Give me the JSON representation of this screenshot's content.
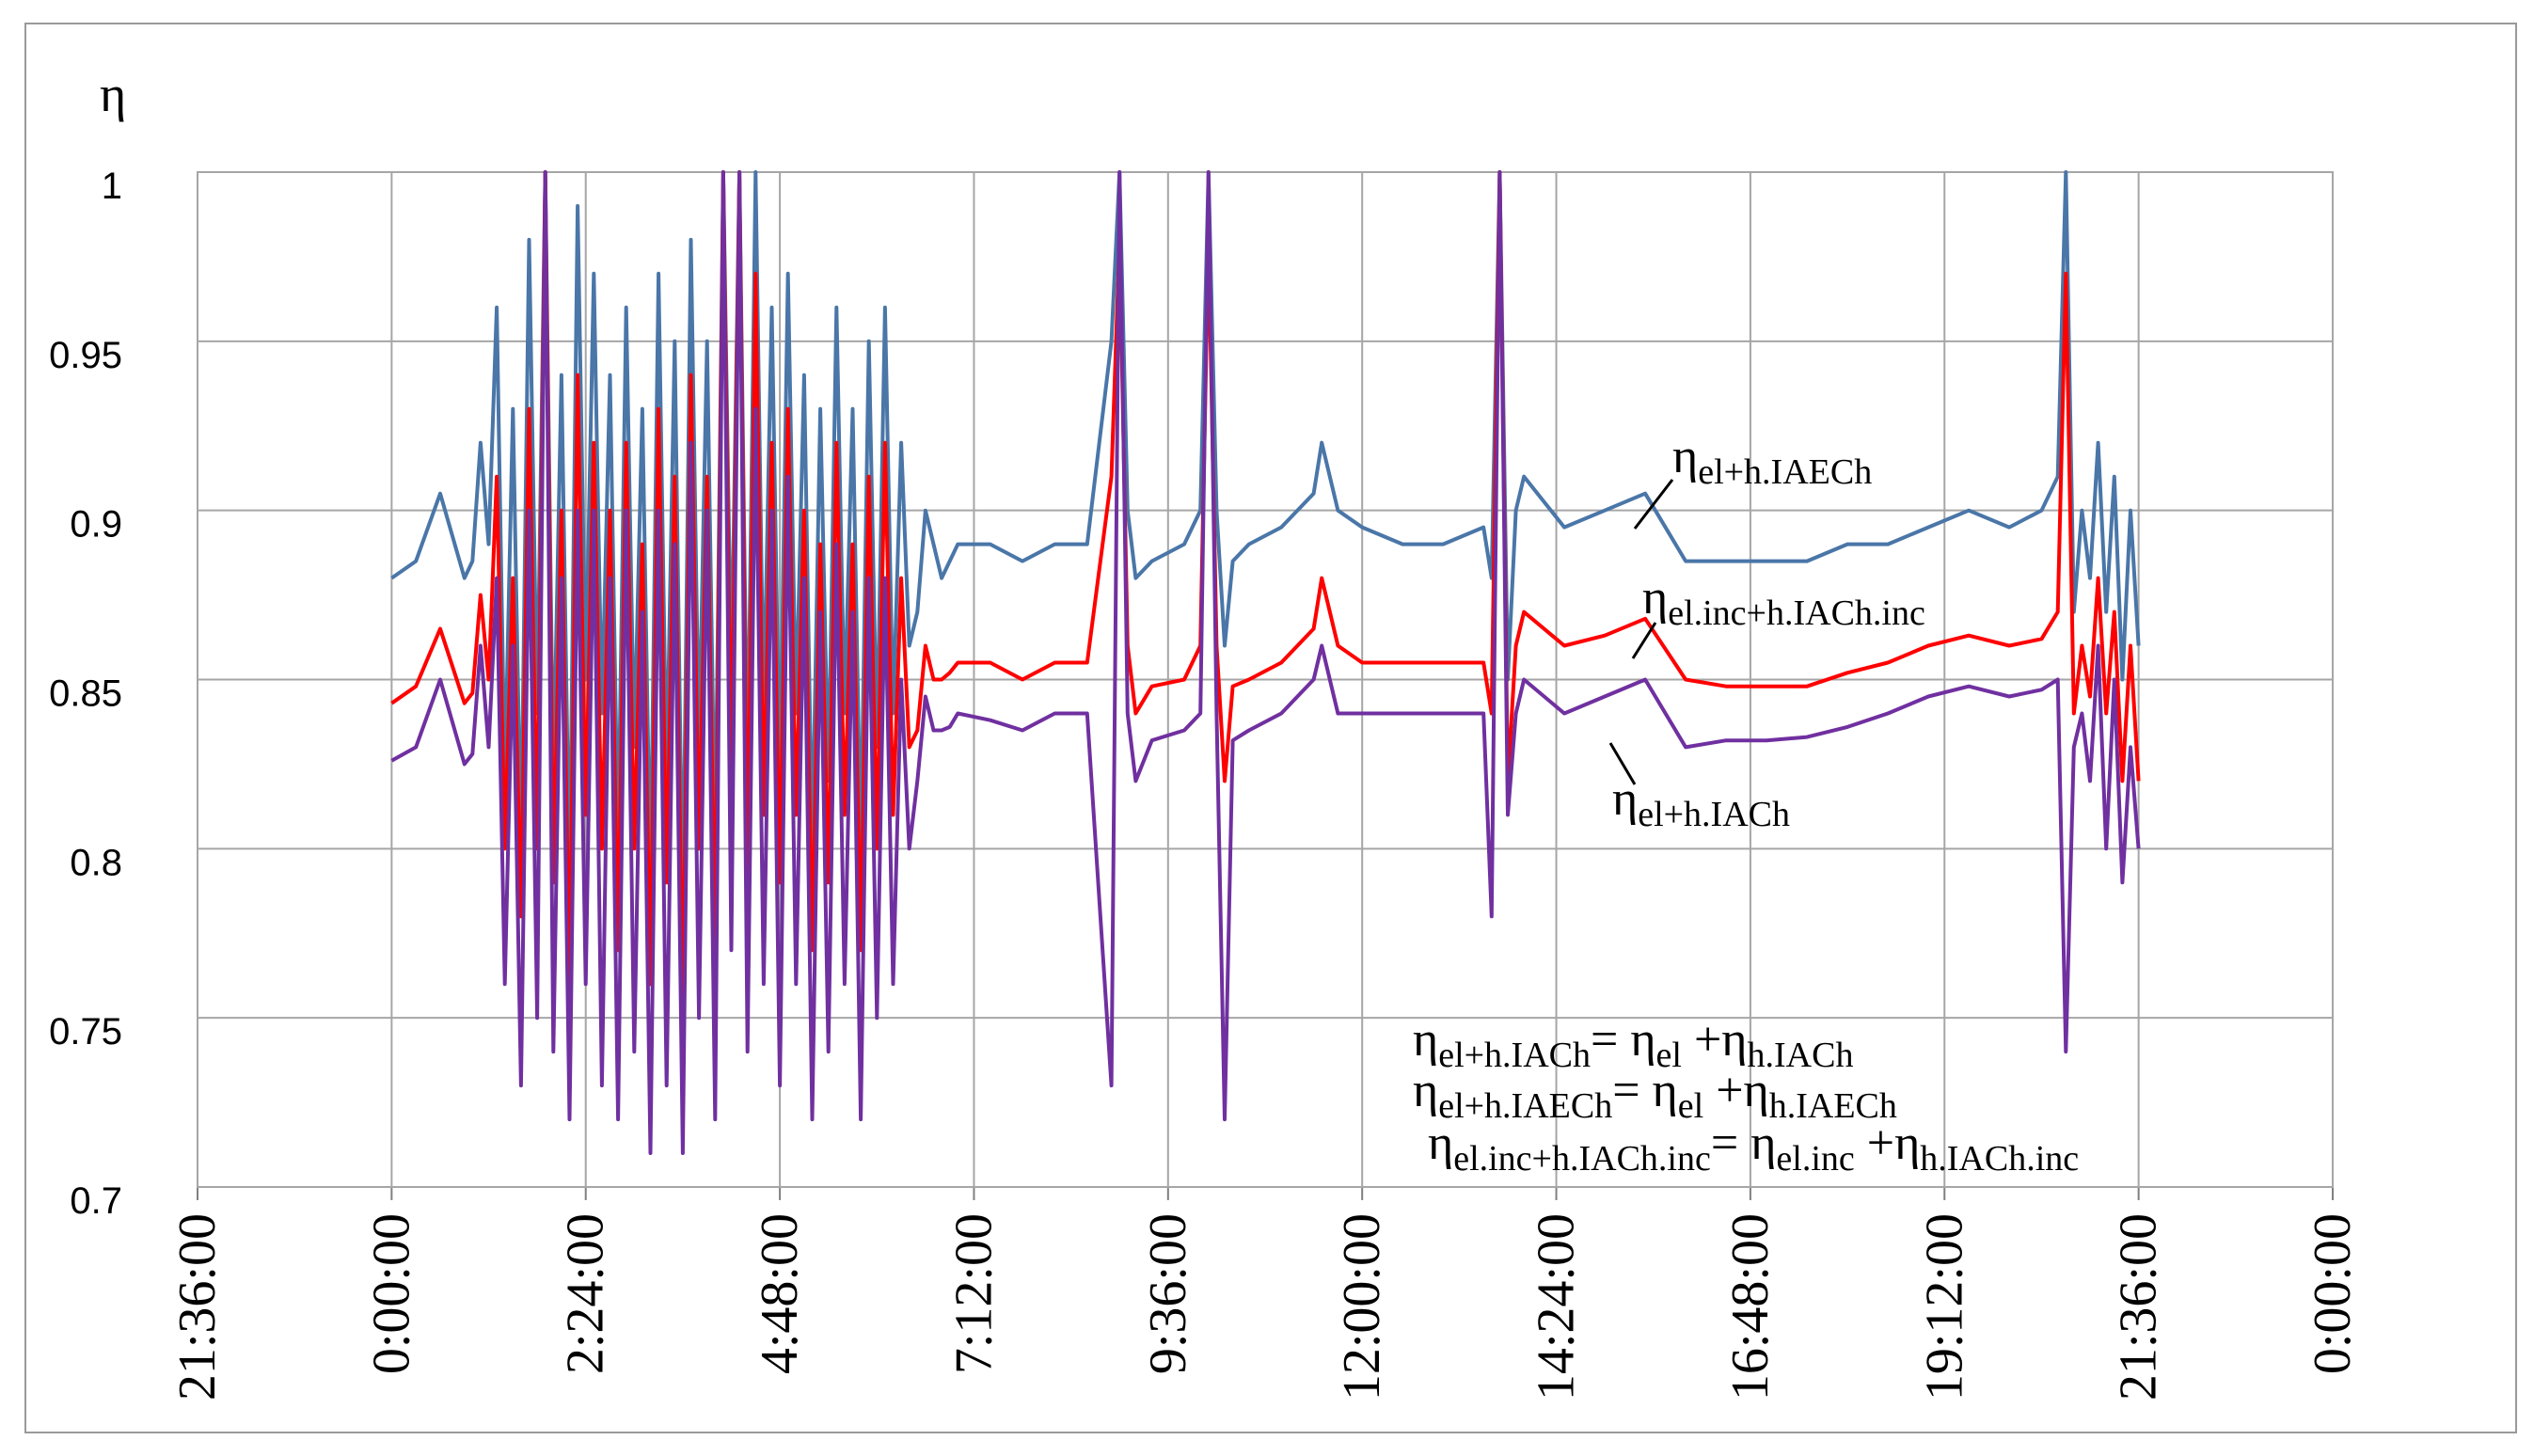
{
  "chart_data": {
    "type": "line",
    "title": "",
    "ylabel": "η",
    "xlabel": "",
    "ylim": [
      0.7,
      1.0
    ],
    "yticks": [
      "0.7",
      "0.75",
      "0.8",
      "0.85",
      "0.9",
      "0.95",
      "1"
    ],
    "xlim_hours": [
      -2.4,
      24.0
    ],
    "xticks": [
      "21:36:00",
      "0:00:00",
      "2:24:00",
      "4:48:00",
      "7:12:00",
      "9:36:00",
      "12:00:00",
      "14:24:00",
      "16:48:00",
      "19:12:00",
      "21:36:00",
      "0:00:00"
    ],
    "grid": true,
    "colors": {
      "blue": "#4a76a8",
      "red": "#ff0000",
      "purple": "#7030a0"
    },
    "series": [
      {
        "name": "ηel+h.IAECh",
        "color": "#4a76a8",
        "x": [
          0.0,
          0.3,
          0.6,
          0.9,
          1.0,
          1.1,
          1.2,
          1.3,
          1.4,
          1.5,
          1.6,
          1.7,
          1.8,
          1.9,
          2.0,
          2.1,
          2.2,
          2.3,
          2.4,
          2.5,
          2.6,
          2.7,
          2.8,
          2.9,
          3.0,
          3.1,
          3.2,
          3.3,
          3.4,
          3.5,
          3.6,
          3.7,
          3.8,
          3.9,
          4.0,
          4.1,
          4.2,
          4.3,
          4.4,
          4.5,
          4.6,
          4.7,
          4.8,
          4.9,
          5.0,
          5.1,
          5.2,
          5.3,
          5.4,
          5.5,
          5.6,
          5.7,
          5.8,
          5.9,
          6.0,
          6.1,
          6.2,
          6.3,
          6.4,
          6.5,
          6.6,
          6.7,
          6.8,
          6.9,
          7.0,
          7.4,
          7.8,
          8.2,
          8.6,
          8.9,
          9.0,
          9.1,
          9.2,
          9.4,
          9.8,
          10.0,
          10.1,
          10.2,
          10.3,
          10.4,
          10.6,
          11.0,
          11.4,
          11.5,
          11.7,
          12.0,
          12.5,
          13.0,
          13.5,
          13.6,
          13.7,
          13.8,
          13.9,
          14.0,
          14.5,
          15.0,
          15.5,
          16.0,
          16.5,
          17.0,
          17.5,
          18.0,
          18.5,
          19.0,
          19.5,
          20.0,
          20.4,
          20.6,
          20.7,
          20.8,
          20.9,
          21.0,
          21.1,
          21.2,
          21.3,
          21.4,
          21.5,
          21.6
        ],
        "y": [
          0.88,
          0.885,
          0.905,
          0.88,
          0.885,
          0.92,
          0.89,
          0.96,
          0.82,
          0.93,
          0.8,
          0.98,
          0.84,
          1.0,
          0.82,
          0.94,
          0.79,
          0.99,
          0.85,
          0.97,
          0.84,
          0.94,
          0.8,
          0.96,
          0.83,
          0.93,
          0.79,
          0.97,
          0.82,
          0.95,
          0.78,
          0.98,
          0.83,
          0.95,
          0.8,
          1.0,
          0.85,
          1.0,
          0.82,
          1.0,
          0.84,
          0.96,
          0.82,
          0.97,
          0.84,
          0.94,
          0.8,
          0.93,
          0.82,
          0.96,
          0.84,
          0.93,
          0.8,
          0.95,
          0.83,
          0.96,
          0.84,
          0.92,
          0.86,
          0.87,
          0.9,
          0.89,
          0.88,
          0.885,
          0.89,
          0.89,
          0.885,
          0.89,
          0.89,
          0.95,
          1.0,
          0.9,
          0.88,
          0.885,
          0.89,
          0.9,
          1.0,
          0.9,
          0.86,
          0.885,
          0.89,
          0.895,
          0.905,
          0.92,
          0.9,
          0.895,
          0.89,
          0.89,
          0.895,
          0.88,
          1.0,
          0.85,
          0.9,
          0.91,
          0.895,
          0.9,
          0.905,
          0.885,
          0.885,
          0.885,
          0.885,
          0.89,
          0.89,
          0.895,
          0.9,
          0.895,
          0.9,
          0.91,
          1.0,
          0.87,
          0.9,
          0.88,
          0.92,
          0.87,
          0.91,
          0.85,
          0.9,
          0.86
        ]
      },
      {
        "name": "ηel.inc+h.IACh.inc",
        "color": "#ff0000",
        "x": [
          0.0,
          0.3,
          0.6,
          0.9,
          1.0,
          1.1,
          1.2,
          1.3,
          1.4,
          1.5,
          1.6,
          1.7,
          1.8,
          1.9,
          2.0,
          2.1,
          2.2,
          2.3,
          2.4,
          2.5,
          2.6,
          2.7,
          2.8,
          2.9,
          3.0,
          3.1,
          3.2,
          3.3,
          3.4,
          3.5,
          3.6,
          3.7,
          3.8,
          3.9,
          4.0,
          4.1,
          4.2,
          4.3,
          4.4,
          4.5,
          4.6,
          4.7,
          4.8,
          4.9,
          5.0,
          5.1,
          5.2,
          5.3,
          5.4,
          5.5,
          5.6,
          5.7,
          5.8,
          5.9,
          6.0,
          6.1,
          6.2,
          6.3,
          6.4,
          6.5,
          6.6,
          6.7,
          6.8,
          6.9,
          7.0,
          7.4,
          7.8,
          8.2,
          8.6,
          8.9,
          9.0,
          9.1,
          9.2,
          9.4,
          9.8,
          10.0,
          10.1,
          10.2,
          10.3,
          10.4,
          10.6,
          11.0,
          11.4,
          11.5,
          11.7,
          12.0,
          12.5,
          13.0,
          13.5,
          13.6,
          13.7,
          13.8,
          13.9,
          14.0,
          14.5,
          15.0,
          15.5,
          16.0,
          16.5,
          17.0,
          17.5,
          18.0,
          18.5,
          19.0,
          19.5,
          20.0,
          20.4,
          20.6,
          20.7,
          20.8,
          20.9,
          21.0,
          21.1,
          21.2,
          21.3,
          21.4,
          21.5,
          21.6
        ],
        "y": [
          0.843,
          0.848,
          0.865,
          0.843,
          0.846,
          0.875,
          0.85,
          0.91,
          0.8,
          0.88,
          0.78,
          0.93,
          0.8,
          1.0,
          0.79,
          0.9,
          0.76,
          0.94,
          0.81,
          0.92,
          0.8,
          0.9,
          0.77,
          0.92,
          0.8,
          0.89,
          0.76,
          0.93,
          0.79,
          0.91,
          0.75,
          0.94,
          0.8,
          0.91,
          0.77,
          1.0,
          0.82,
          1.0,
          0.79,
          0.97,
          0.81,
          0.92,
          0.79,
          0.93,
          0.81,
          0.9,
          0.77,
          0.89,
          0.79,
          0.92,
          0.81,
          0.89,
          0.77,
          0.91,
          0.8,
          0.92,
          0.81,
          0.88,
          0.83,
          0.835,
          0.86,
          0.85,
          0.85,
          0.852,
          0.855,
          0.855,
          0.85,
          0.855,
          0.855,
          0.91,
          0.98,
          0.86,
          0.84,
          0.848,
          0.85,
          0.86,
          0.98,
          0.86,
          0.82,
          0.848,
          0.85,
          0.855,
          0.865,
          0.88,
          0.86,
          0.855,
          0.855,
          0.855,
          0.855,
          0.84,
          1.0,
          0.82,
          0.86,
          0.87,
          0.86,
          0.863,
          0.868,
          0.85,
          0.848,
          0.848,
          0.848,
          0.852,
          0.855,
          0.86,
          0.863,
          0.86,
          0.862,
          0.87,
          0.97,
          0.84,
          0.86,
          0.845,
          0.88,
          0.84,
          0.87,
          0.82,
          0.86,
          0.82
        ]
      },
      {
        "name": "ηel+h.IACh",
        "color": "#7030a0",
        "x": [
          0.0,
          0.3,
          0.6,
          0.9,
          1.0,
          1.1,
          1.2,
          1.3,
          1.4,
          1.5,
          1.6,
          1.7,
          1.8,
          1.9,
          2.0,
          2.1,
          2.2,
          2.3,
          2.4,
          2.5,
          2.6,
          2.7,
          2.8,
          2.9,
          3.0,
          3.1,
          3.2,
          3.3,
          3.4,
          3.5,
          3.6,
          3.7,
          3.8,
          3.9,
          4.0,
          4.1,
          4.2,
          4.3,
          4.4,
          4.5,
          4.6,
          4.7,
          4.8,
          4.9,
          5.0,
          5.1,
          5.2,
          5.3,
          5.4,
          5.5,
          5.6,
          5.7,
          5.8,
          5.9,
          6.0,
          6.1,
          6.2,
          6.3,
          6.4,
          6.5,
          6.6,
          6.7,
          6.8,
          6.9,
          7.0,
          7.4,
          7.8,
          8.2,
          8.6,
          8.9,
          9.0,
          9.1,
          9.2,
          9.4,
          9.8,
          10.0,
          10.1,
          10.2,
          10.3,
          10.4,
          10.6,
          11.0,
          11.4,
          11.5,
          11.7,
          12.0,
          12.5,
          13.0,
          13.5,
          13.6,
          13.7,
          13.8,
          13.9,
          14.0,
          14.5,
          15.0,
          15.5,
          16.0,
          16.5,
          17.0,
          17.5,
          18.0,
          18.5,
          19.0,
          19.5,
          20.0,
          20.4,
          20.6,
          20.7,
          20.8,
          20.9,
          21.0,
          21.1,
          21.2,
          21.3,
          21.4,
          21.5,
          21.6
        ],
        "y": [
          0.826,
          0.83,
          0.85,
          0.825,
          0.828,
          0.86,
          0.83,
          0.88,
          0.76,
          0.86,
          0.73,
          0.9,
          0.75,
          1.0,
          0.74,
          0.88,
          0.72,
          0.9,
          0.76,
          0.9,
          0.73,
          0.88,
          0.72,
          0.9,
          0.74,
          0.87,
          0.71,
          0.9,
          0.73,
          0.89,
          0.71,
          0.92,
          0.75,
          0.9,
          0.72,
          1.0,
          0.77,
          1.0,
          0.74,
          0.93,
          0.76,
          0.9,
          0.73,
          0.91,
          0.76,
          0.88,
          0.72,
          0.87,
          0.74,
          0.89,
          0.76,
          0.87,
          0.72,
          0.88,
          0.75,
          0.88,
          0.76,
          0.85,
          0.8,
          0.82,
          0.845,
          0.835,
          0.835,
          0.836,
          0.84,
          0.838,
          0.835,
          0.84,
          0.84,
          0.73,
          1.0,
          0.84,
          0.82,
          0.832,
          0.835,
          0.84,
          1.0,
          0.84,
          0.72,
          0.832,
          0.835,
          0.84,
          0.85,
          0.86,
          0.84,
          0.84,
          0.84,
          0.84,
          0.84,
          0.78,
          1.0,
          0.81,
          0.84,
          0.85,
          0.84,
          0.845,
          0.85,
          0.83,
          0.832,
          0.832,
          0.833,
          0.836,
          0.84,
          0.845,
          0.848,
          0.845,
          0.847,
          0.85,
          0.74,
          0.83,
          0.84,
          0.82,
          0.86,
          0.8,
          0.85,
          0.79,
          0.83,
          0.8
        ]
      }
    ],
    "annotations": {
      "label_blue": {
        "main": "η",
        "sub": "el+h.IAECh"
      },
      "label_red": {
        "main": "η",
        "sub": "el.inc+h.IACh.inc"
      },
      "label_purple": {
        "main": "η",
        "sub": "el+h.IACh"
      },
      "formulas": [
        {
          "lhs_main": "η",
          "lhs_sub": "el+h.IACh",
          "eq": "= ",
          "t1_main": "η",
          "t1_sub": "el",
          "plus": " +",
          "t2_main": "η",
          "t2_sub": "h.IACh"
        },
        {
          "lhs_main": "η",
          "lhs_sub": "el+h.IAECh",
          "eq": "= ",
          "t1_main": "η",
          "t1_sub": "el",
          "plus": " +",
          "t2_main": "η",
          "t2_sub": "h.IAECh"
        },
        {
          "lhs_main": "η",
          "lhs_sub": "el.inc+h.IACh.inc",
          "eq": "= ",
          "t1_main": "η",
          "t1_sub": "el.inc",
          "plus": " +",
          "t2_main": "η",
          "t2_sub": "h.IACh.inc"
        }
      ]
    }
  }
}
